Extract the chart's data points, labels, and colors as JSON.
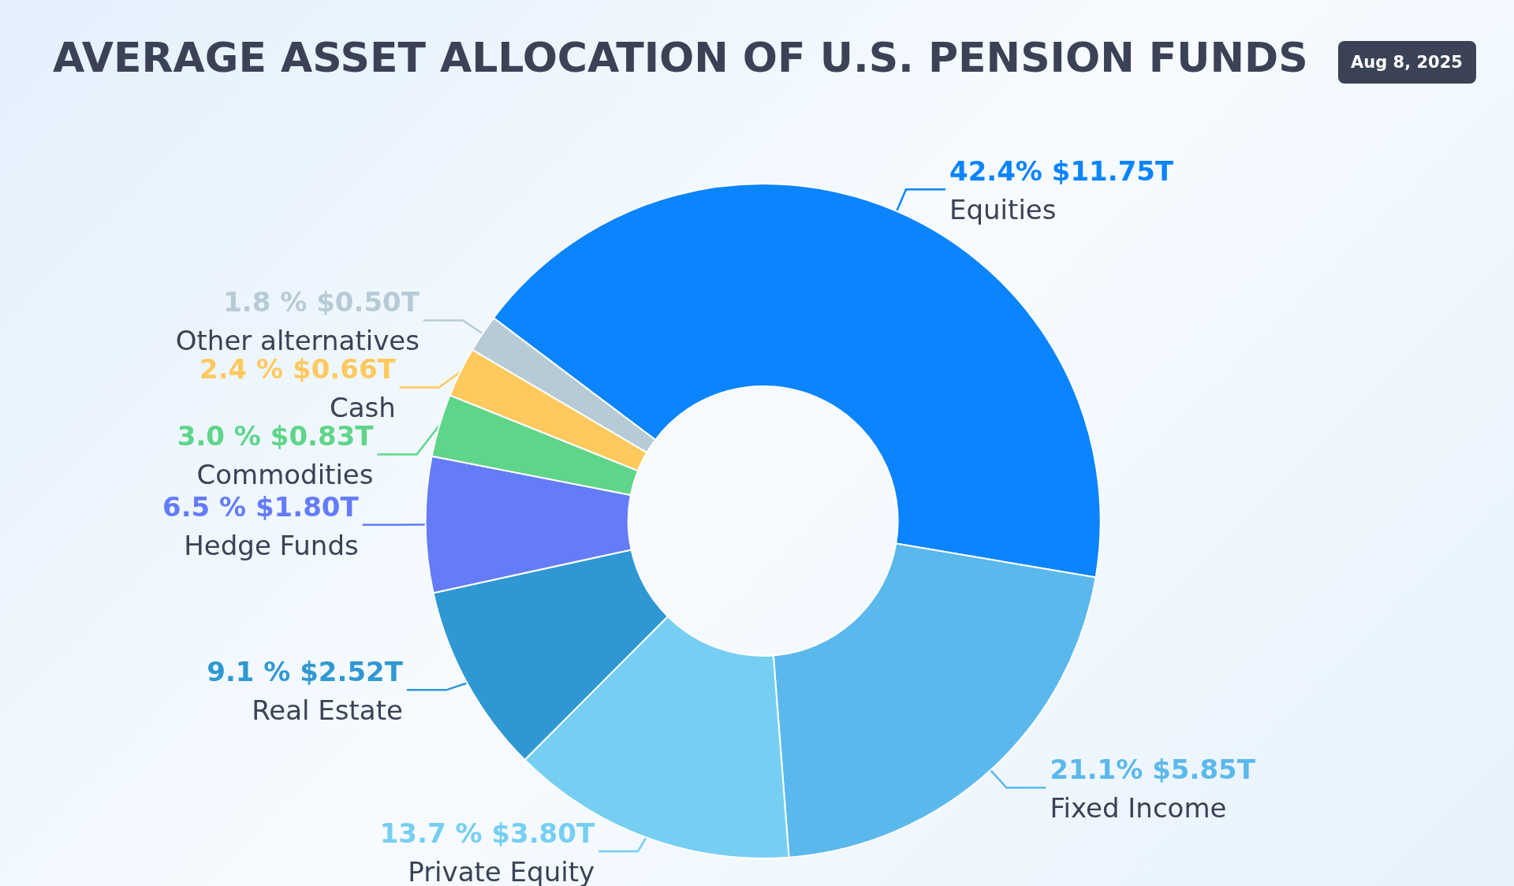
{
  "chart_data": {
    "type": "donut",
    "title": "AVERAGE ASSET ALLOCATION OF U.S. PENSION FUNDS",
    "annotations": [
      "Aug 8, 2025"
    ],
    "categories": [
      "Equities",
      "Fixed Income",
      "Private Equity",
      "Real Estate",
      "Hedge Funds",
      "Commodities",
      "Cash",
      "Other alternatives"
    ],
    "values": [
      42.4,
      21.1,
      13.7,
      9.1,
      6.5,
      3.0,
      2.4,
      1.8
    ],
    "value_labels": [
      "42.4% $11.75T",
      "21.1% $5.85T",
      "13.7 % $3.80T",
      "9.1 % $2.52T",
      "6.5 % $1.80T",
      "3.0 % $0.83T",
      "2.4 % $0.66T",
      "1.8 % $0.50T"
    ],
    "colors": [
      "#0a84ff",
      "#5bb8ec",
      "#76cff3",
      "#2f98d3",
      "#647cf8",
      "#5fd58a",
      "#ffc95e",
      "#b7cbd6"
    ]
  }
}
